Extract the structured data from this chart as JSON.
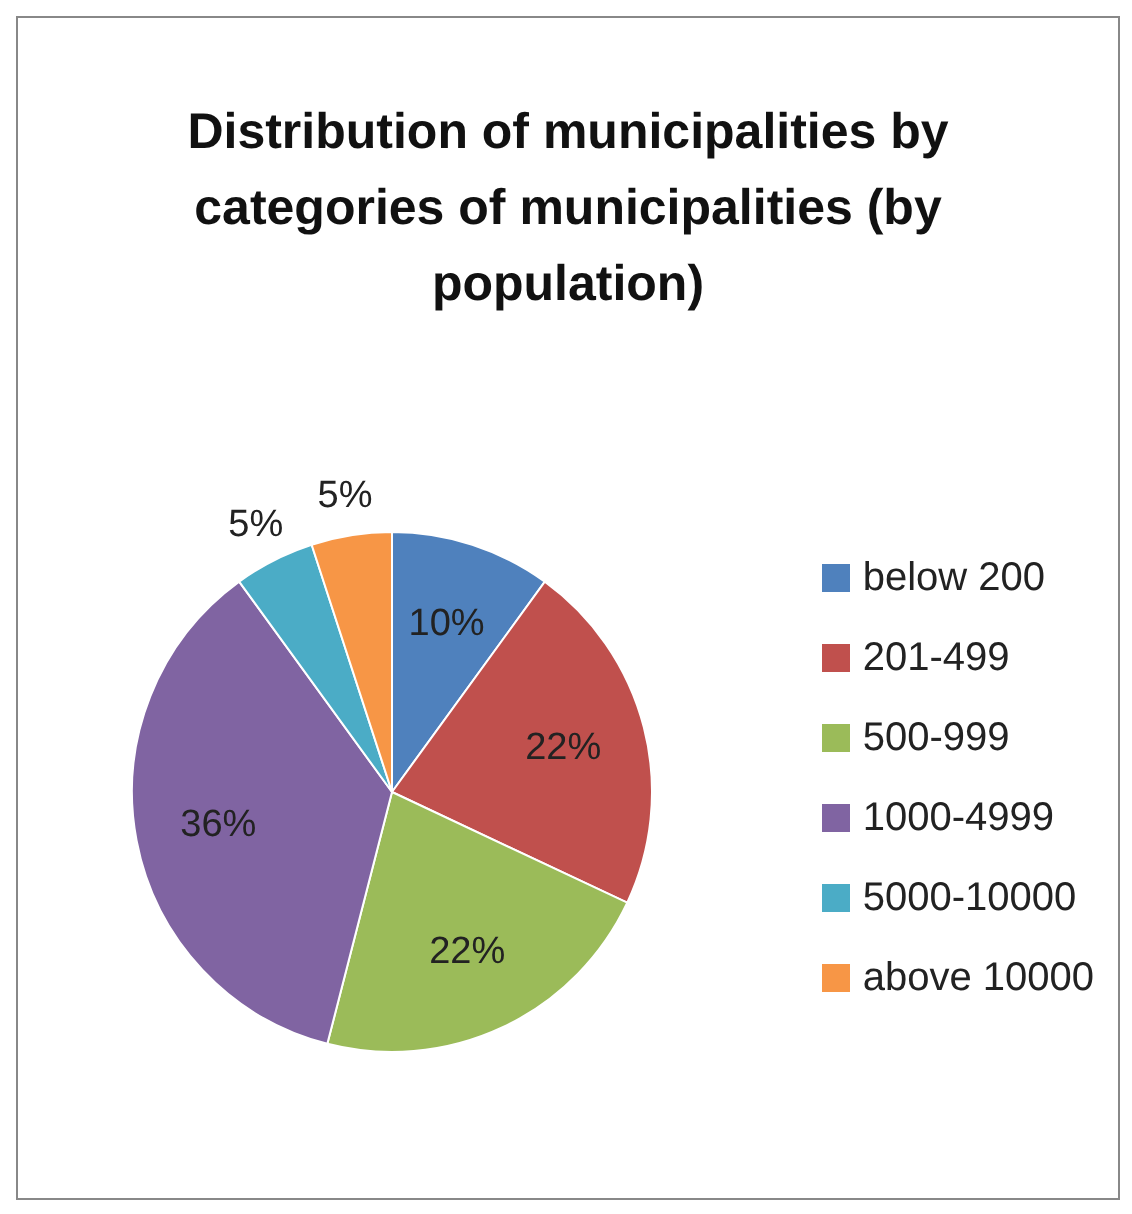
{
  "chart_data": {
    "type": "pie",
    "title": "Distribution of municipalities by categories of municipalities (by population)",
    "categories": [
      "below 200",
      "201-499",
      "500-999",
      "1000-4999",
      "5000-10000",
      "above 10000"
    ],
    "values": [
      10,
      22,
      22,
      36,
      5,
      5
    ],
    "colors": [
      "#4f81bd",
      "#c0504d",
      "#9bbb59",
      "#8064a2",
      "#4bacc6",
      "#f79646"
    ],
    "value_labels": [
      "10%",
      "22%",
      "22%",
      "36%",
      "5%",
      "5%"
    ],
    "legend": "right"
  }
}
